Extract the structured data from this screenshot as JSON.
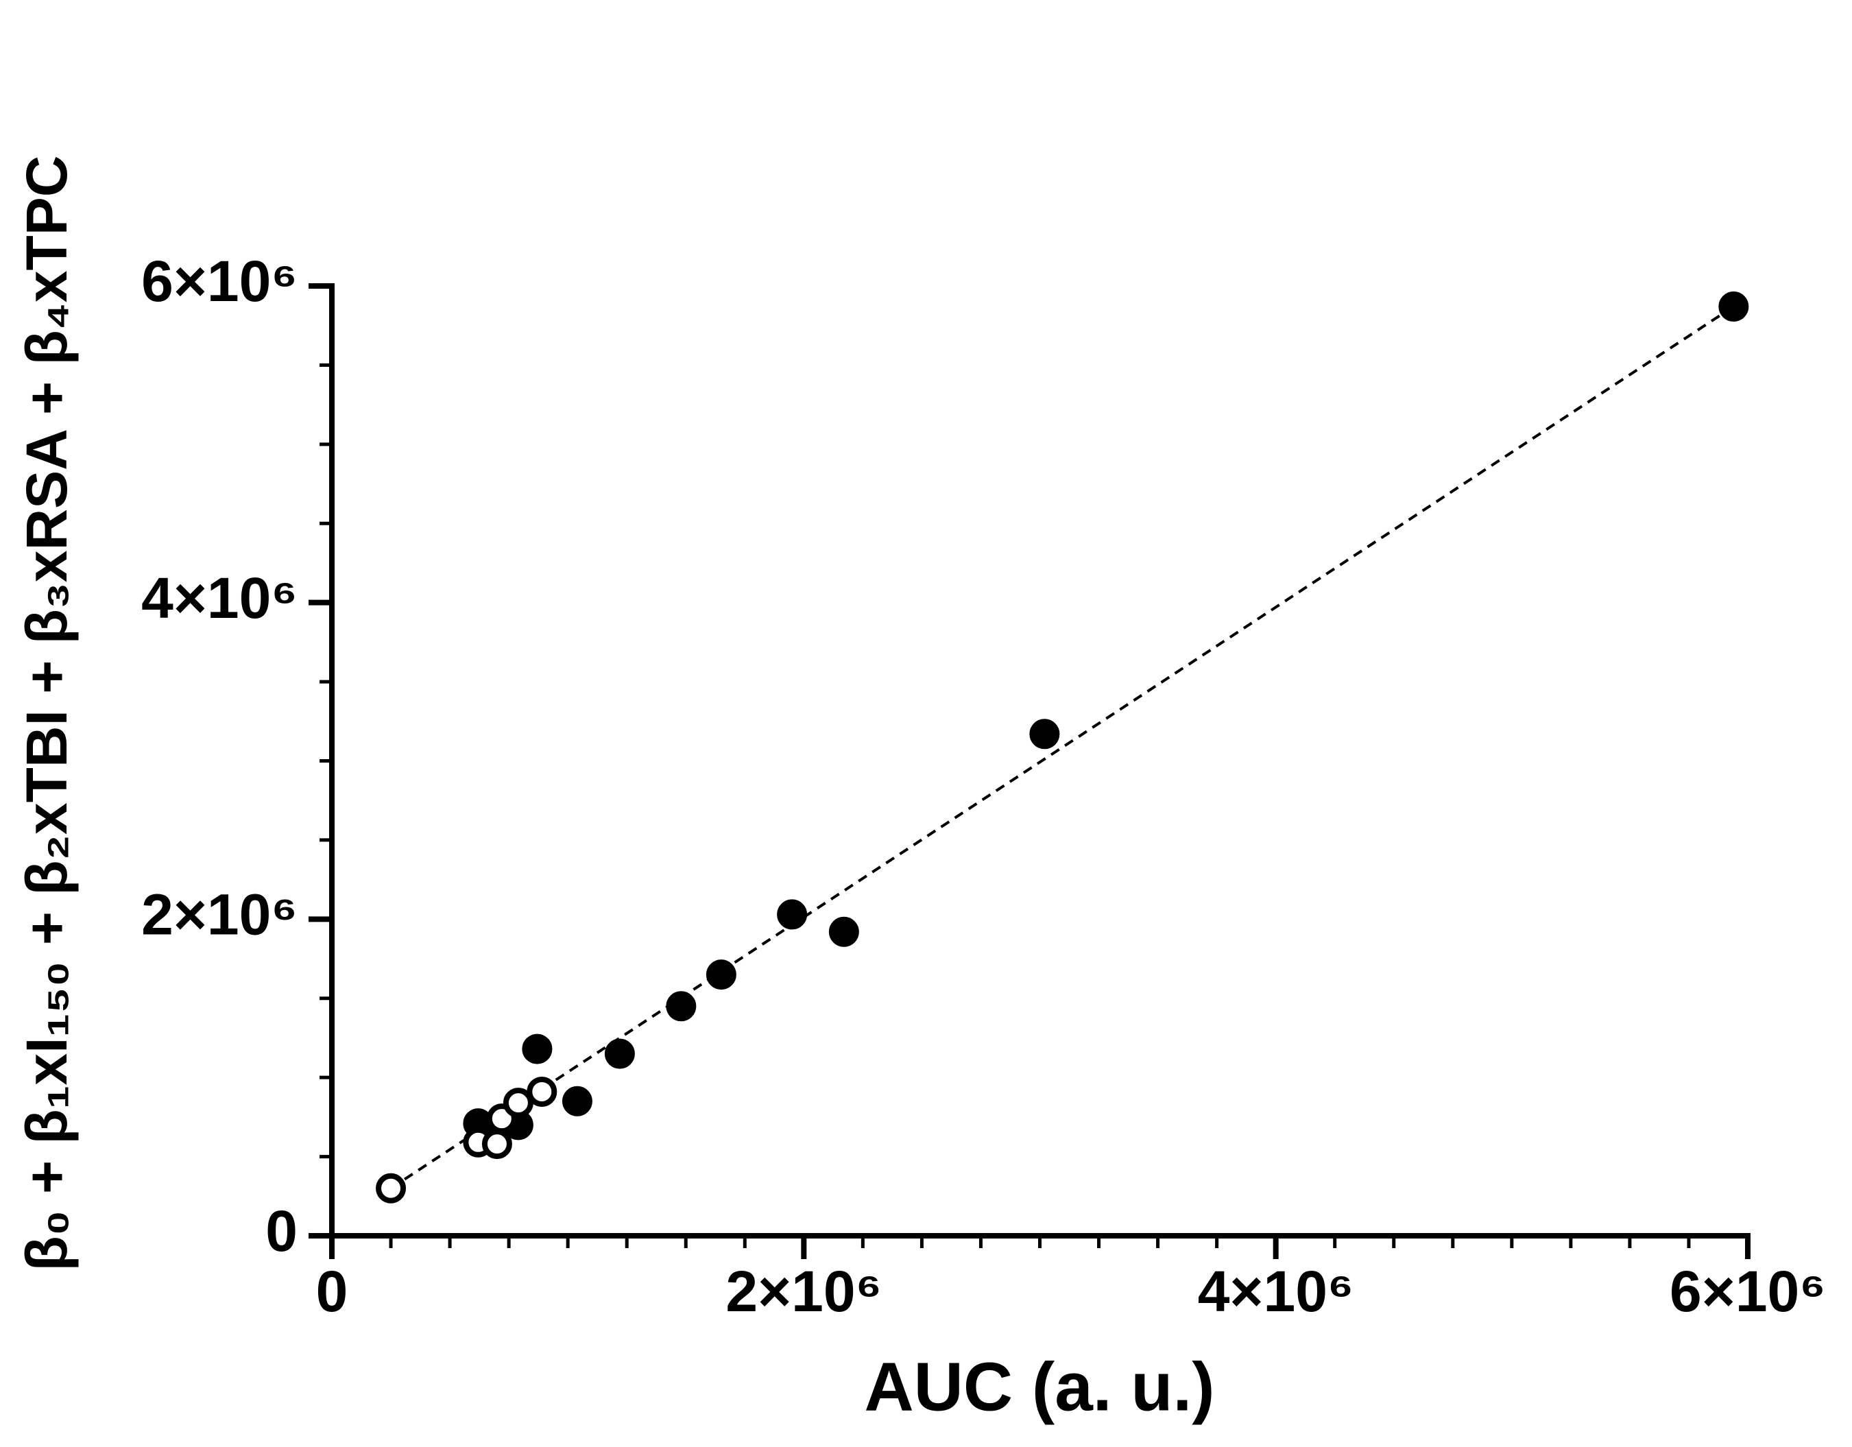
{
  "chart_data": {
    "type": "scatter",
    "xlabel": "AUC (a. u.)",
    "ylabel": "β₀ + β₁xI₁₅₀ + β₂xTBI + β₃xRSA + β₄xTPC",
    "xlim": [
      0,
      6000000
    ],
    "ylim": [
      0,
      6000000
    ],
    "xticks": [
      {
        "value": 0,
        "label": "0"
      },
      {
        "value": 2000000,
        "label": "2×10⁶"
      },
      {
        "value": 4000000,
        "label": "4×10⁶"
      },
      {
        "value": 6000000,
        "label": "6×10⁶"
      }
    ],
    "yticks": [
      {
        "value": 0,
        "label": "0"
      },
      {
        "value": 2000000,
        "label": "2×10⁶"
      },
      {
        "value": 4000000,
        "label": "4×10⁶"
      },
      {
        "value": 6000000,
        "label": "6×10⁶"
      }
    ],
    "xminorticks": [
      250000,
      500000,
      750000,
      1000000,
      1250000,
      1500000,
      1750000,
      2250000,
      2500000,
      2750000,
      3000000,
      3250000,
      3500000,
      3750000,
      4250000,
      4500000,
      4750000,
      5000000,
      5250000,
      5500000,
      5750000
    ],
    "yminorticks": [
      500000,
      1000000,
      1500000,
      2500000,
      3000000,
      3500000,
      4500000,
      5000000,
      5500000
    ],
    "series": [
      {
        "color": "#000000",
        "fill": "#000000",
        "x": [
          5940000,
          3020000,
          1950000,
          2170000,
          1650000,
          1480000,
          1220000,
          870000,
          1040000,
          790000,
          620000
        ],
        "values": [
          5870000,
          3170000,
          2030000,
          1920000,
          1650000,
          1450000,
          1150000,
          1180000,
          850000,
          700000,
          710000
        ]
      },
      {
        "color": "#000000",
        "fill": "#ffffff",
        "x": [
          250000,
          620000,
          700000,
          720000,
          790000,
          890000
        ],
        "values": [
          300000,
          590000,
          580000,
          740000,
          840000,
          910000
        ]
      }
    ],
    "fit": {
      "color": "#000000",
      "x": [
        250000,
        5940000
      ],
      "values": [
        300000,
        5870000
      ]
    }
  }
}
